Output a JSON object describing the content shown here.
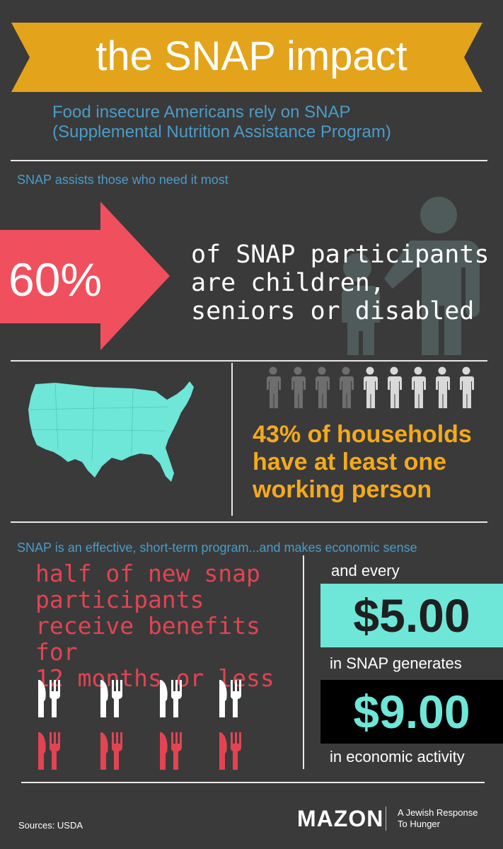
{
  "colors": {
    "background": "#3a3a3a",
    "banner": "#e3a31a",
    "blue_text": "#4a9cc9",
    "red_arrow": "#f0505e",
    "map": "#6ee6d8",
    "gold": "#f4a91e",
    "red_utensils": "#e24452",
    "cyan_box": "#6ee6d8"
  },
  "header": {
    "title": "the SNAP impact",
    "subtitle_line1": "Food insecure Americans rely on SNAP",
    "subtitle_line2": "(Supplemental Nutrition Assistance Program)"
  },
  "section1": {
    "label": "SNAP assists those who need it most",
    "percent": "60%",
    "text_line1": "of SNAP participants",
    "text_line2": "are children,",
    "text_line3": "seniors or disabled",
    "icon": "adult-child-silhouette-icon"
  },
  "section2": {
    "map_icon": "usa-map-icon",
    "people_icon": "person-icon",
    "people_total": 9,
    "people_highlighted": 4,
    "text_line1": "43% of households",
    "text_line2": "have at least one",
    "text_line3": "working person"
  },
  "section3": {
    "label": "SNAP is an effective, short-term program...and makes economic sense",
    "left_line1": "half of new snap",
    "left_line2": "participants",
    "left_line3": "receive benefits for",
    "left_line4": "12 months or less",
    "utensil_icon": "knife-fork-icon",
    "utensils_white": 4,
    "utensils_red": 4,
    "and_every": "and every",
    "amount1": "$5.00",
    "generates": "in SNAP generates",
    "amount2": "$9.00",
    "economic": "in economic activity"
  },
  "footer": {
    "sources": "Sources: USDA",
    "logo": "MAZON",
    "tagline_line1": "A Jewish Response",
    "tagline_line2": "To Hunger"
  }
}
